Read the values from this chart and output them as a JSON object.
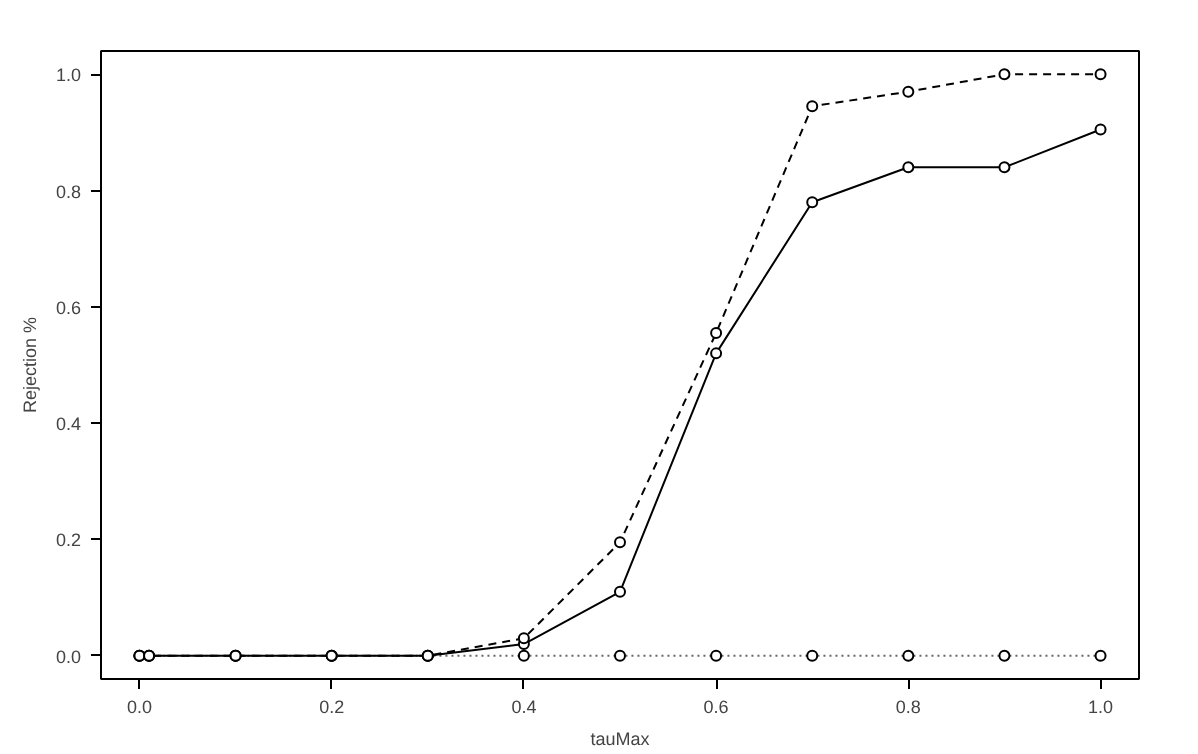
{
  "chart_data": {
    "type": "line",
    "xlabel": "tauMax",
    "ylabel": "Rejection %",
    "x": [
      0,
      0.01,
      0.1,
      0.2,
      0.3,
      0.4,
      0.5,
      0.6,
      0.7,
      0.8,
      0.9,
      1.0
    ],
    "series": [
      {
        "color": "#000000",
        "line_style": "solid",
        "values": [
          0,
          0,
          0,
          0,
          0,
          0.02,
          0.11,
          0.52,
          0.78,
          0.84,
          0.84,
          0.905
        ]
      },
      {
        "color": "#000000",
        "line_style": "dashed",
        "values": [
          0,
          0,
          0,
          0,
          0,
          0.03,
          0.195,
          0.555,
          0.945,
          0.97,
          1.0,
          1.0
        ]
      },
      {
        "color": "#000000",
        "line_style": "dotted",
        "values": [
          0,
          0,
          0,
          0,
          0,
          0,
          0,
          0,
          0,
          0,
          0,
          0
        ]
      }
    ],
    "marker": "circle",
    "xlim": [
      -0.04,
      1.04
    ],
    "ylim": [
      -0.04,
      1.04
    ],
    "xticks": [
      {
        "value": 0,
        "label": "0.0"
      },
      0.2,
      0.4,
      0.6,
      0.8,
      {
        "value": 1,
        "label": "1.0"
      }
    ],
    "yticks": [
      {
        "value": 0,
        "label": "0.0"
      },
      0.2,
      0.4,
      0.6,
      0.8,
      {
        "value": 1,
        "label": "1.0"
      }
    ],
    "grid": false
  }
}
